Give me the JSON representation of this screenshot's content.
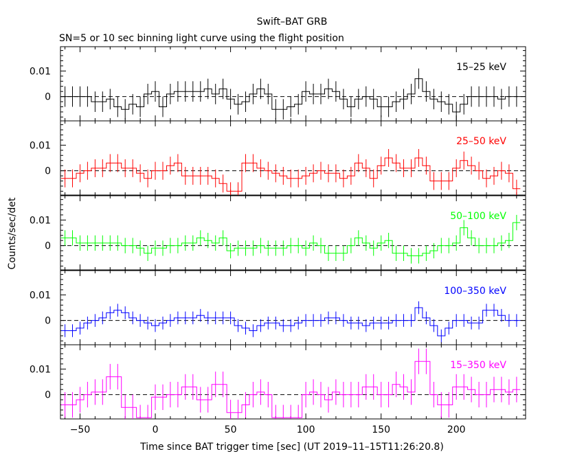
{
  "title": "Swift–BAT GRB",
  "subtitle": "SN=5 or 10 sec binning light curve using the flight position",
  "colors": {
    "frame": "#000000",
    "background": "#ffffff"
  },
  "chart_data": {
    "type": "line",
    "style": "step with error bars, stacked panels sharing x axis",
    "xlabel": "Time since BAT trigger time [sec] (UT 2019–11–15T11:26:20.8)",
    "ylabel": "Counts/sec/det",
    "xlim": [
      -63,
      246
    ],
    "x_ticks": [
      -50,
      0,
      50,
      100,
      150,
      200
    ],
    "x_tick_labels": [
      "−50",
      "0",
      "50",
      "100",
      "150",
      "200"
    ],
    "y_ticks": [
      0,
      0.01
    ],
    "y_tick_labels": [
      "0",
      "0.01"
    ],
    "bin_width": 5,
    "x": [
      -60,
      -55,
      -50,
      -45,
      -40,
      -35,
      -30,
      -25,
      -20,
      -15,
      -10,
      -5,
      0,
      5,
      10,
      15,
      20,
      25,
      30,
      35,
      40,
      45,
      50,
      55,
      60,
      65,
      70,
      75,
      80,
      85,
      90,
      95,
      100,
      105,
      110,
      115,
      120,
      125,
      130,
      135,
      140,
      145,
      150,
      155,
      160,
      165,
      170,
      175,
      180,
      185,
      190,
      195,
      200,
      205,
      210,
      215,
      220,
      225,
      230,
      235,
      240
    ],
    "reference_line": {
      "y": 0,
      "style": "dashed"
    },
    "panels": [
      {
        "name": "15–25 keV",
        "color": "#000000",
        "ylim": [
          -0.0095,
          0.0195
        ],
        "values": [
          0,
          0,
          0,
          0,
          -0.002,
          -0.002,
          -0.001,
          -0.004,
          -0.005,
          -0.003,
          -0.004,
          0.001,
          0.002,
          -0.004,
          0.001,
          0.002,
          0.002,
          0.002,
          0.002,
          0.003,
          0.001,
          0.003,
          -0.001,
          -0.003,
          -0.002,
          0.001,
          0.003,
          0.001,
          -0.005,
          -0.005,
          -0.004,
          -0.003,
          0.002,
          0.001,
          0.001,
          0.003,
          0.002,
          -0.001,
          -0.004,
          -0.001,
          0,
          -0.001,
          -0.004,
          -0.004,
          -0.002,
          -0.001,
          0.001,
          0.007,
          0.002,
          -0.001,
          -0.002,
          -0.003,
          -0.006,
          -0.003,
          0,
          0,
          0,
          0,
          -0.001,
          0,
          0
        ],
        "errors": [
          0.004,
          0.004,
          0.004,
          0.004,
          0.004,
          0.004,
          0.004,
          0.004,
          0.004,
          0.004,
          0.004,
          0.004,
          0.004,
          0.004,
          0.004,
          0.004,
          0.004,
          0.004,
          0.004,
          0.004,
          0.004,
          0.004,
          0.004,
          0.004,
          0.004,
          0.004,
          0.004,
          0.004,
          0.004,
          0.004,
          0.004,
          0.004,
          0.004,
          0.004,
          0.004,
          0.004,
          0.004,
          0.004,
          0.004,
          0.004,
          0.004,
          0.004,
          0.004,
          0.004,
          0.004,
          0.004,
          0.004,
          0.004,
          0.004,
          0.004,
          0.004,
          0.004,
          0.004,
          0.004,
          0.004,
          0.004,
          0.004,
          0.004,
          0.004,
          0.004,
          0.004
        ]
      },
      {
        "name": "25–50 keV",
        "color": "#ff0000",
        "ylim": [
          -0.0095,
          0.0195
        ],
        "values": [
          -0.003,
          -0.003,
          -0.001,
          0,
          0.001,
          0.001,
          0.003,
          0.003,
          0.001,
          0.001,
          -0.001,
          -0.003,
          0,
          0,
          0.002,
          0.003,
          -0.002,
          -0.002,
          -0.002,
          -0.002,
          -0.003,
          -0.005,
          -0.008,
          -0.008,
          0.003,
          0.003,
          0.001,
          0,
          -0.001,
          -0.002,
          -0.003,
          -0.003,
          -0.002,
          -0.001,
          0,
          -0.001,
          -0.001,
          -0.003,
          -0.002,
          0.003,
          0.001,
          -0.003,
          0.002,
          0.005,
          0.003,
          0.001,
          0.001,
          0.005,
          0.002,
          -0.004,
          -0.004,
          -0.004,
          0.001,
          0.004,
          0.002,
          0,
          -0.003,
          -0.002,
          0,
          -0.001,
          -0.007
        ],
        "errors": [
          0.0035,
          0.0035,
          0.0035,
          0.0035,
          0.0035,
          0.0035,
          0.0035,
          0.0035,
          0.0035,
          0.0035,
          0.0035,
          0.0035,
          0.0035,
          0.0035,
          0.0035,
          0.0035,
          0.0035,
          0.0035,
          0.0035,
          0.0035,
          0.0035,
          0.0035,
          0.0035,
          0.0035,
          0.0035,
          0.0035,
          0.0035,
          0.0035,
          0.0035,
          0.0035,
          0.0035,
          0.0035,
          0.0035,
          0.0035,
          0.0035,
          0.0035,
          0.0035,
          0.0035,
          0.0035,
          0.0035,
          0.0035,
          0.0035,
          0.0035,
          0.0035,
          0.0035,
          0.0035,
          0.0035,
          0.0035,
          0.0035,
          0.0035,
          0.0035,
          0.0035,
          0.0035,
          0.0035,
          0.0035,
          0.0035,
          0.0035,
          0.0035,
          0.0035,
          0.0035,
          0.0035
        ]
      },
      {
        "name": "50–100 keV",
        "color": "#00ff00",
        "ylim": [
          -0.0095,
          0.0195
        ],
        "values": [
          0.003,
          0.003,
          0.001,
          0.001,
          0.001,
          0.001,
          0.001,
          0.001,
          0,
          0,
          -0.001,
          -0.003,
          -0.001,
          -0.001,
          0,
          0,
          0.001,
          0.001,
          0.003,
          0.002,
          0.001,
          0.003,
          -0.002,
          -0.001,
          -0.001,
          -0.001,
          0,
          -0.001,
          -0.001,
          -0.001,
          0,
          0,
          -0.001,
          0.001,
          0,
          -0.003,
          -0.003,
          -0.003,
          0,
          0.003,
          0.001,
          -0.001,
          0.001,
          0.002,
          -0.003,
          -0.003,
          -0.004,
          -0.004,
          -0.003,
          -0.002,
          0,
          0,
          0.001,
          0.007,
          0.003,
          0,
          0,
          0,
          0.001,
          0.002,
          0.009
        ],
        "errors": [
          0.003,
          0.003,
          0.003,
          0.003,
          0.003,
          0.003,
          0.003,
          0.003,
          0.003,
          0.003,
          0.003,
          0.003,
          0.003,
          0.003,
          0.003,
          0.003,
          0.003,
          0.003,
          0.003,
          0.003,
          0.003,
          0.003,
          0.003,
          0.003,
          0.003,
          0.003,
          0.003,
          0.003,
          0.003,
          0.003,
          0.003,
          0.003,
          0.003,
          0.003,
          0.003,
          0.003,
          0.003,
          0.003,
          0.003,
          0.003,
          0.003,
          0.003,
          0.003,
          0.003,
          0.003,
          0.003,
          0.003,
          0.003,
          0.003,
          0.003,
          0.003,
          0.003,
          0.003,
          0.003,
          0.003,
          0.003,
          0.003,
          0.003,
          0.003,
          0.003,
          0.003
        ]
      },
      {
        "name": "100–350 keV",
        "color": "#0000ff",
        "ylim": [
          -0.0095,
          0.0195
        ],
        "values": [
          -0.004,
          -0.004,
          -0.003,
          -0.001,
          0,
          0.001,
          0.003,
          0.004,
          0.003,
          0.001,
          0,
          -0.001,
          -0.002,
          -0.001,
          0,
          0.001,
          0.001,
          0.001,
          0.002,
          0.001,
          0.001,
          0.001,
          0.001,
          -0.002,
          -0.003,
          -0.004,
          -0.002,
          -0.001,
          -0.001,
          -0.002,
          -0.002,
          -0.001,
          0,
          0,
          0,
          0.001,
          0.001,
          0,
          -0.001,
          -0.001,
          -0.002,
          -0.001,
          -0.001,
          -0.001,
          0,
          0,
          0,
          0.005,
          0.001,
          -0.002,
          -0.006,
          -0.003,
          0,
          0,
          -0.001,
          -0.001,
          0.004,
          0.004,
          0.002,
          0,
          0
        ],
        "errors": [
          0.0025,
          0.0025,
          0.0025,
          0.0025,
          0.0025,
          0.0025,
          0.0025,
          0.0025,
          0.0025,
          0.0025,
          0.0025,
          0.0025,
          0.0025,
          0.0025,
          0.0025,
          0.0025,
          0.0025,
          0.0025,
          0.0025,
          0.0025,
          0.0025,
          0.0025,
          0.0025,
          0.0025,
          0.0025,
          0.0025,
          0.0025,
          0.0025,
          0.0025,
          0.0025,
          0.0025,
          0.0025,
          0.0025,
          0.0025,
          0.0025,
          0.0025,
          0.0025,
          0.0025,
          0.0025,
          0.0025,
          0.0025,
          0.0025,
          0.0025,
          0.0025,
          0.0025,
          0.0025,
          0.0025,
          0.0025,
          0.0025,
          0.0025,
          0.0025,
          0.0025,
          0.0025,
          0.0025,
          0.0025,
          0.0025,
          0.0025,
          0.0025,
          0.0025,
          0.0025,
          0.0025
        ]
      },
      {
        "name": "15–350 keV",
        "color": "#ff00ff",
        "ylim": [
          -0.0095,
          0.0195
        ],
        "values": [
          -0.004,
          -0.004,
          -0.002,
          0,
          0.001,
          0.001,
          0.007,
          0.007,
          -0.005,
          -0.005,
          -0.009,
          -0.009,
          -0.001,
          -0.001,
          0,
          0,
          0.003,
          0.003,
          -0.002,
          -0.002,
          0.004,
          0.004,
          -0.007,
          -0.007,
          -0.004,
          0,
          0.001,
          0,
          -0.009,
          -0.009,
          -0.009,
          -0.009,
          0,
          0.001,
          0,
          -0.002,
          0.001,
          0,
          0,
          0,
          0.003,
          0.003,
          0,
          0,
          0.004,
          0.003,
          0.001,
          0.013,
          0.013,
          0,
          -0.004,
          -0.004,
          0.003,
          0.003,
          0.002,
          0,
          0,
          0.002,
          0.002,
          0.001,
          0.002
        ],
        "errors": [
          0.005,
          0.005,
          0.005,
          0.005,
          0.005,
          0.005,
          0.005,
          0.005,
          0.005,
          0.005,
          0.005,
          0.005,
          0.005,
          0.005,
          0.005,
          0.005,
          0.005,
          0.005,
          0.005,
          0.005,
          0.005,
          0.005,
          0.005,
          0.005,
          0.005,
          0.005,
          0.005,
          0.005,
          0.005,
          0.005,
          0.005,
          0.005,
          0.005,
          0.005,
          0.005,
          0.005,
          0.005,
          0.005,
          0.005,
          0.005,
          0.005,
          0.005,
          0.005,
          0.005,
          0.005,
          0.005,
          0.005,
          0.005,
          0.005,
          0.005,
          0.005,
          0.005,
          0.005,
          0.005,
          0.005,
          0.005,
          0.005,
          0.005,
          0.005,
          0.005,
          0.005
        ]
      }
    ]
  }
}
